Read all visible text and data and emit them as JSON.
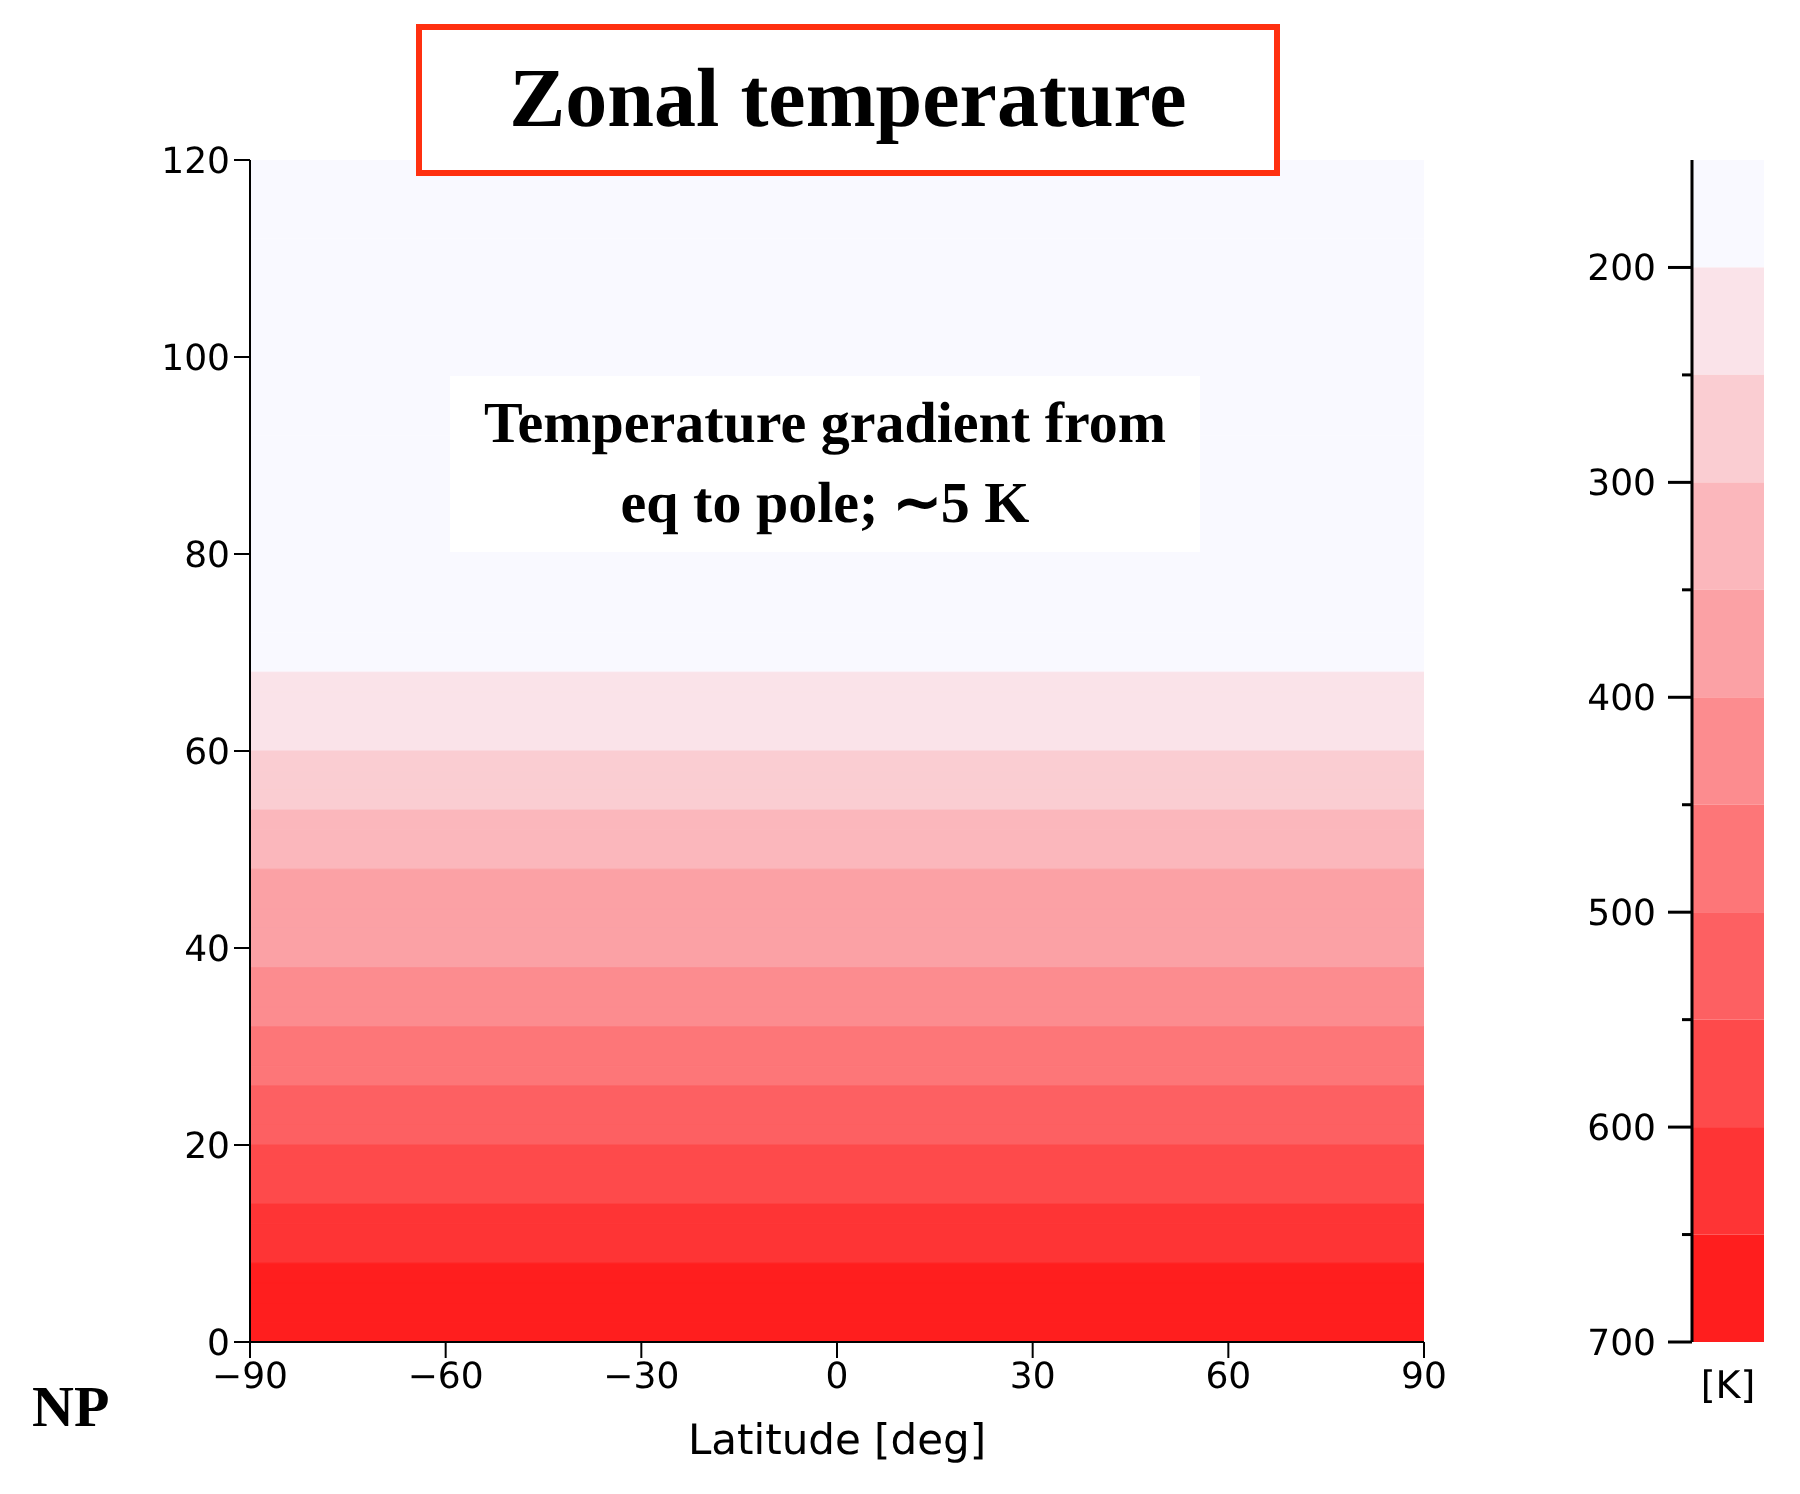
{
  "chart_data": {
    "type": "heatmap",
    "title": "Zonal temperature",
    "xlabel": "Latitude [deg]",
    "clabel": "[K]",
    "annotations": [
      "Temperature gradient from eq to pole; ∼5 K",
      "NP"
    ],
    "xlim": [
      -90,
      90
    ],
    "xticks": [
      -90,
      -60,
      -30,
      0,
      30,
      60,
      90
    ],
    "ylim": [
      0,
      120
    ],
    "yticks": [
      0,
      20,
      40,
      60,
      80,
      100,
      120
    ],
    "clim": [
      150,
      700
    ],
    "cticks": [
      200,
      {
        "value": 250,
        "label": null
      },
      300,
      {
        "value": 350,
        "label": null
      },
      400,
      {
        "value": 450,
        "label": null
      },
      500,
      {
        "value": 550,
        "label": null
      },
      600,
      {
        "value": 650,
        "label": null
      },
      700
    ],
    "colors": [
      "#f9f9ff",
      "#ff1e1e"
    ],
    "cells": [
      [
        175
      ],
      [
        175
      ],
      [
        175
      ],
      [
        175
      ],
      [
        175
      ],
      [
        175
      ],
      [
        175
      ],
      [
        175
      ],
      [
        175
      ],
      [
        175
      ],
      [
        180
      ],
      [
        180
      ],
      [
        180
      ],
      [
        180
      ],
      [
        180
      ],
      [
        180
      ],
      [
        180
      ],
      [
        180
      ],
      [
        180
      ],
      [
        180
      ],
      [
        185
      ],
      [
        185
      ],
      [
        185
      ],
      [
        185
      ],
      [
        185
      ],
      [
        195
      ],
      [
        206
      ],
      [
        219
      ],
      [
        231
      ],
      [
        244
      ],
      [
        259
      ],
      [
        275
      ],
      [
        291
      ],
      [
        307
      ],
      [
        321
      ],
      [
        336
      ],
      [
        351
      ],
      [
        362
      ],
      [
        373
      ],
      [
        384
      ],
      [
        396
      ],
      [
        410
      ],
      [
        425
      ],
      [
        441
      ],
      [
        458
      ],
      [
        475
      ],
      [
        492
      ],
      [
        509
      ],
      [
        527
      ],
      [
        544
      ],
      [
        561
      ],
      [
        578
      ],
      [
        595
      ],
      [
        611
      ],
      [
        628
      ],
      [
        644
      ],
      [
        661
      ],
      [
        677
      ],
      [
        693
      ],
      [
        700
      ]
    ]
  }
}
